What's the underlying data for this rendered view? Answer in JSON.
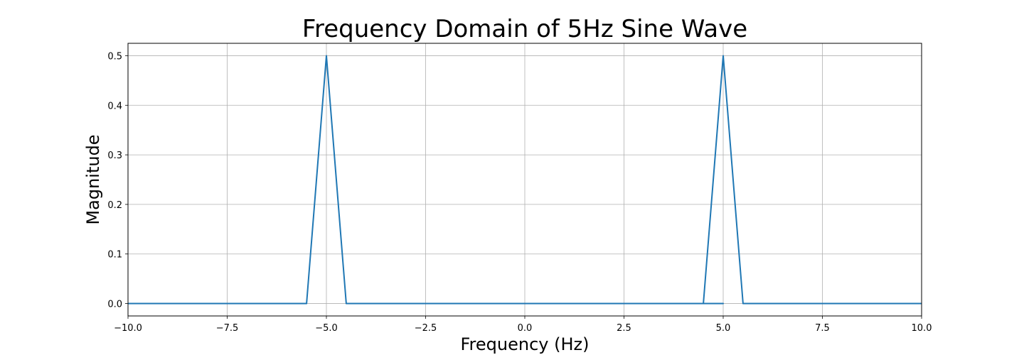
{
  "chart_data": {
    "type": "line",
    "title": "Frequency Domain of 5Hz Sine Wave",
    "xlabel": "Frequency (Hz)",
    "ylabel": "Magnitude",
    "xlim": [
      -10.0,
      10.0
    ],
    "ylim": [
      -0.025,
      0.525
    ],
    "grid": true,
    "x_ticks": [
      -10.0,
      -7.5,
      -5.0,
      -2.5,
      0.0,
      2.5,
      5.0,
      7.5,
      10.0
    ],
    "x_tick_labels": [
      "−10.0",
      "−7.5",
      "−5.0",
      "−2.5",
      "0.0",
      "2.5",
      "5.0",
      "7.5",
      "10.0"
    ],
    "y_ticks": [
      0.0,
      0.1,
      0.2,
      0.3,
      0.4,
      0.5
    ],
    "y_tick_labels": [
      "0.0",
      "0.1",
      "0.2",
      "0.3",
      "0.4",
      "0.5"
    ],
    "series": [
      {
        "color": "#1f77b4",
        "x": [
          -10.0,
          -5.5,
          -5.0,
          -4.5,
          5.0,
          4.5,
          5.0,
          5.5,
          10.0
        ],
        "y": [
          0.0,
          0.0,
          0.5,
          0.0,
          0.0,
          0.0,
          0.5,
          0.0,
          0.0
        ]
      }
    ]
  }
}
